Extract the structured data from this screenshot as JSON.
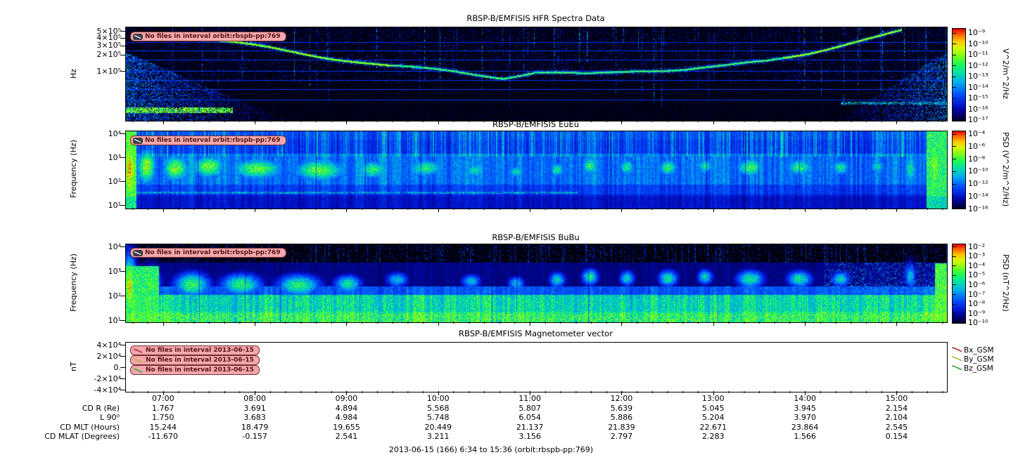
{
  "colors": {
    "badge_background": "#f2a6ad",
    "badge_border": "#7a2f2f",
    "badge_text": "#5a1414",
    "bx_series": "#b23b3b",
    "by_series": "#b5b944",
    "bz_series": "#3daf3d"
  },
  "chart_data": [
    {
      "type": "heatmap",
      "title": "RBSP-B/EMFISIS  HFR Spectra Data",
      "ylabel": "Hz",
      "yscale": "log",
      "ytick_labels": [
        "5×10⁵",
        "4×10⁵",
        "3×10⁵",
        "2×10⁵",
        "1×10⁵"
      ],
      "xrange": [
        "06:34",
        "15:36"
      ],
      "no_data_label": "No files in interval orbit:rbspb-pp:769",
      "colorbar": {
        "label": "V^2/m^2/Hz",
        "tick_labels": [
          "10⁻⁹",
          "10⁻¹⁰",
          "10⁻¹¹",
          "10⁻¹²",
          "10⁻¹³",
          "10⁻¹⁴",
          "10⁻¹⁵",
          "10⁻¹⁶",
          "10⁻¹⁷"
        ]
      },
      "description": "Dark blue noisy spectrogram with bright upper-hybrid emission line descending from ~400 kHz near 07:00 to ~60 kHz at apogee then rising to ~500 kHz by 15:30; broadband bursts below 100 kHz near perigee at both edges and thin horizontal instrument lines."
    },
    {
      "type": "heatmap",
      "title": "RBSP-B/EMFISIS  EuEu",
      "ylabel": "Frequency (Hz)",
      "yscale": "log",
      "ytick_labels": [
        "10⁴",
        "10³",
        "10²",
        "10¹"
      ],
      "xrange": [
        "06:34",
        "15:36"
      ],
      "no_data_label": "No files in interval orbit:rbspb-pp:769",
      "colorbar": {
        "label": "PSD (V^2/m^2/Hz)",
        "tick_labels": [
          "10⁻⁴",
          "10⁻⁶",
          "10⁻⁸",
          "10⁻¹⁰",
          "10⁻¹²",
          "10⁻¹⁴",
          "10⁻¹⁶"
        ]
      },
      "description": "Blue broadband electric-field spectrogram with bright cyan-green wave power patches between ~100 Hz and ~1 kHz across the whole orbit and bright columns at both edges."
    },
    {
      "type": "heatmap",
      "title": "RBSP-B/EMFISIS  BuBu",
      "ylabel": "Frequency (Hz)",
      "yscale": "log",
      "ytick_labels": [
        "10⁴",
        "10³",
        "10²",
        "10¹"
      ],
      "xrange": [
        "06:34",
        "15:36"
      ],
      "no_data_label": "No files in interval orbit:rbspb-pp:769",
      "colorbar": {
        "label": "PSD (nT^2/Hz)",
        "tick_labels": [
          "10⁻²",
          "10⁻³",
          "10⁻⁴",
          "10⁻⁵",
          "10⁻⁶",
          "10⁻⁷",
          "10⁻⁸",
          "10⁻⁹",
          "10⁻¹⁰"
        ]
      },
      "description": "Magnetic-field spectrogram: black above ~1 kHz, strong green power band below ~100 Hz, green patches between 100 Hz and 1 kHz mirroring the electric-field bursts."
    },
    {
      "type": "line",
      "title": "RBSP-B/EMFISIS  Magnetometer vector",
      "ylabel": "nT",
      "ytick_labels": [
        "4×10⁴",
        "2×10⁴",
        "0.",
        "-2×10⁴",
        "-4×10⁴"
      ],
      "series": [
        {
          "name": "Bx_GSM",
          "color": "#b23b3b",
          "no_data_label": "No files in interval 2013-06-15"
        },
        {
          "name": "By_GSM",
          "color": "#b5b944",
          "no_data_label": "No files in interval 2013-06-15"
        },
        {
          "name": "Bz_GSM",
          "color": "#3daf3d",
          "no_data_label": "No files in interval 2013-06-15"
        }
      ],
      "values": []
    },
    {
      "type": "table",
      "x_tick_labels": [
        "07:00",
        "08:00",
        "09:00",
        "10:00",
        "11:00",
        "12:00",
        "13:00",
        "14:00",
        "15:00"
      ],
      "rows": [
        {
          "label": "CD R (Re)",
          "values": [
            "1.767",
            "3.691",
            "4.894",
            "5.568",
            "5.807",
            "5.639",
            "5.045",
            "3.945",
            "2.154"
          ]
        },
        {
          "label": "L 90⁰",
          "values": [
            "1.750",
            "3.683",
            "4.984",
            "5.748",
            "6.054",
            "5.886",
            "5.204",
            "3.970",
            "2.104"
          ]
        },
        {
          "label": "CD MLT (Hours)",
          "values": [
            "15.244",
            "18.479",
            "19.655",
            "20.449",
            "21.137",
            "21.839",
            "22.671",
            "23.864",
            "2.545"
          ]
        },
        {
          "label": "CD MLAT (Degrees)",
          "values": [
            "-11.670",
            "-0.157",
            "2.541",
            "3.211",
            "3.156",
            "2.797",
            "2.283",
            "1.566",
            "0.154"
          ]
        }
      ],
      "caption": "2013-06-15 (166) 6:34 to 15:36 (orbit:rbspb-pp:769)"
    }
  ]
}
